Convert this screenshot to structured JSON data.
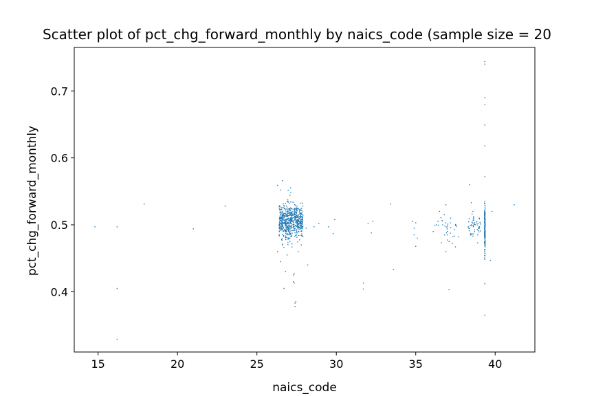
{
  "chart_data": {
    "type": "scatter",
    "title": "Scatter plot of pct_chg_forward_monthly by naics_code (sample size = 20",
    "xlabel": "naics_code",
    "ylabel": "pct_chg_forward_monthly",
    "xlim": [
      13.5,
      42.5
    ],
    "ylim": [
      0.31,
      0.765
    ],
    "xticks": [
      15,
      20,
      25,
      30,
      35,
      40
    ],
    "yticks": [
      0.4,
      0.5,
      0.6,
      0.7
    ],
    "xtick_labels": [
      "15",
      "20",
      "25",
      "30",
      "35",
      "40"
    ],
    "ytick_labels": [
      "0.4",
      "0.5",
      "0.6",
      "0.7"
    ],
    "grid": false,
    "marker_color": "#1f77b4",
    "series": [
      {
        "values_note_omitted": "",
        "points": [
          [
            14.8,
            0.497
          ],
          [
            16.2,
            0.497
          ],
          [
            16.2,
            0.405
          ],
          [
            16.2,
            0.329
          ],
          [
            17.9,
            0.531
          ],
          [
            21.0,
            0.494
          ],
          [
            23.0,
            0.528
          ],
          [
            26.3,
            0.46
          ],
          [
            26.3,
            0.559
          ],
          [
            26.4,
            0.5
          ],
          [
            26.5,
            0.445
          ],
          [
            26.6,
            0.566
          ],
          [
            26.5,
            0.552
          ],
          [
            26.6,
            0.47
          ],
          [
            26.8,
            0.43
          ],
          [
            26.7,
            0.405
          ],
          [
            26.9,
            0.455
          ],
          [
            27.0,
            0.48
          ],
          [
            26.9,
            0.52
          ],
          [
            27.1,
            0.51
          ],
          [
            27.3,
            0.425
          ],
          [
            27.35,
            0.427
          ],
          [
            27.3,
            0.415
          ],
          [
            27.35,
            0.413
          ],
          [
            27.4,
            0.383
          ],
          [
            27.4,
            0.378
          ],
          [
            27.45,
            0.385
          ],
          [
            27.6,
            0.46
          ],
          [
            27.8,
            0.47
          ],
          [
            28.1,
            0.495
          ],
          [
            28.2,
            0.44
          ],
          [
            28.6,
            0.497
          ],
          [
            28.9,
            0.502
          ],
          [
            29.5,
            0.497
          ],
          [
            29.8,
            0.487
          ],
          [
            29.9,
            0.508
          ],
          [
            31.7,
            0.413
          ],
          [
            31.7,
            0.404
          ],
          [
            32.0,
            0.502
          ],
          [
            32.2,
            0.488
          ],
          [
            32.3,
            0.505
          ],
          [
            33.4,
            0.531
          ],
          [
            33.6,
            0.433
          ],
          [
            34.8,
            0.505
          ],
          [
            34.9,
            0.495
          ],
          [
            34.9,
            0.485
          ],
          [
            35.0,
            0.503
          ],
          [
            35.0,
            0.468
          ],
          [
            35.1,
            0.48
          ],
          [
            36.1,
            0.49
          ],
          [
            36.3,
            0.5
          ],
          [
            36.4,
            0.505
          ],
          [
            36.5,
            0.52
          ],
          [
            36.7,
            0.5
          ],
          [
            36.8,
            0.515
          ],
          [
            36.9,
            0.53
          ],
          [
            36.9,
            0.46
          ],
          [
            37.0,
            0.485
          ],
          [
            37.1,
            0.475
          ],
          [
            37.1,
            0.403
          ],
          [
            37.2,
            0.51
          ],
          [
            37.3,
            0.472
          ],
          [
            37.5,
            0.467
          ],
          [
            37.7,
            0.482
          ],
          [
            38.4,
            0.56
          ],
          [
            38.5,
            0.533
          ],
          [
            38.5,
            0.5
          ],
          [
            38.6,
            0.52
          ],
          [
            38.7,
            0.49
          ],
          [
            38.9,
            0.485
          ],
          [
            38.9,
            0.473
          ],
          [
            39.0,
            0.495
          ],
          [
            39.0,
            0.51
          ],
          [
            39.35,
            0.744
          ],
          [
            39.35,
            0.74
          ],
          [
            39.35,
            0.69
          ],
          [
            39.35,
            0.68
          ],
          [
            39.35,
            0.649
          ],
          [
            39.35,
            0.618
          ],
          [
            39.35,
            0.572
          ],
          [
            39.35,
            0.412
          ],
          [
            39.35,
            0.365
          ],
          [
            39.7,
            0.447
          ],
          [
            39.8,
            0.52
          ],
          [
            41.2,
            0.53
          ]
        ]
      }
    ],
    "clusters": [
      {
        "x_range": [
          26.4,
          27.9
        ],
        "y_mean": 0.505,
        "y_spread": 0.022,
        "count": 520
      },
      {
        "x_range": [
          26.4,
          27.2
        ],
        "y_mean": 0.51,
        "y_spread": 0.03,
        "count": 80
      },
      {
        "x_range": [
          38.3,
          39.1
        ],
        "y_mean": 0.5,
        "y_spread": 0.015,
        "count": 45
      },
      {
        "x_range": [
          39.33,
          39.37
        ],
        "y_mean": 0.495,
        "y_spread": 0.035,
        "count": 160
      },
      {
        "x_range": [
          36.2,
          37.6
        ],
        "y_mean": 0.495,
        "y_spread": 0.015,
        "count": 25
      }
    ]
  }
}
